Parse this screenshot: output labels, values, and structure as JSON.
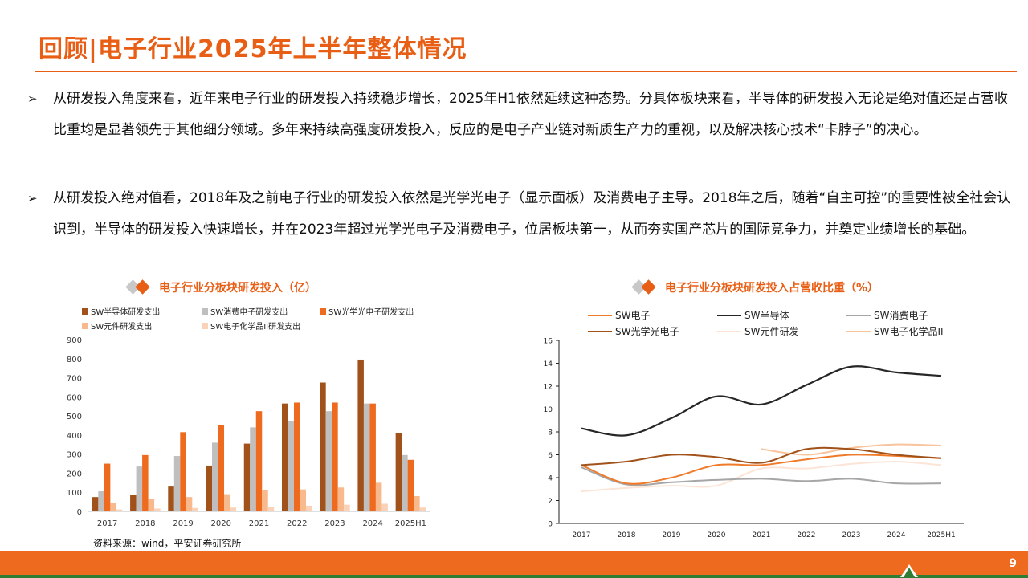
{
  "header": {
    "title": "回顾|电子行业2025年上半年整体情况"
  },
  "bullets": [
    {
      "marker": "➢",
      "text": "从研发投入角度来看，近年来电子行业的研发投入持续稳步增长，2025年H1依然延续这种态势。分具体板块来看，半导体的研发投入无论是绝对值还是占营收比重均是显著领先于其他细分领域。多年来持续高强度研发投入，反应的是电子产业链对新质生产力的重视，以及解决核心技术“卡脖子”的决心。"
    },
    {
      "marker": "➢",
      "text": "从研发投入绝对值看，2018年及之前电子行业的研发投入依然是光学光电子（显示面板）及消费电子主导。2018年之后，随着“自主可控”的重要性被全社会认识到，半导体的研发投入快速增长，并在2023年超过光学光电子及消费电子，位居板块第一，从而夯实国产芯片的国际竞争力，并奠定业绩增长的基础。"
    }
  ],
  "chart_data": [
    {
      "type": "bar",
      "title": "电子行业分板块研发投入（亿）",
      "categories": [
        "2017",
        "2018",
        "2019",
        "2020",
        "2021",
        "2022",
        "2023",
        "2024",
        "2025H1"
      ],
      "ylim": [
        0,
        900
      ],
      "yticks": [
        "0",
        "100",
        "200",
        "300",
        "400",
        "500",
        "600",
        "700",
        "800",
        "900"
      ],
      "series": [
        {
          "name": "SW半导体研发支出",
          "color": "#A0521A",
          "values": [
            75,
            85,
            130,
            240,
            355,
            565,
            675,
            795,
            410
          ]
        },
        {
          "name": "SW消费电子研发支出",
          "color": "#BFBFBF",
          "values": [
            105,
            235,
            290,
            360,
            440,
            475,
            525,
            565,
            295
          ]
        },
        {
          "name": "SW光学光电子研发支出",
          "color": "#EE6A1E",
          "values": [
            250,
            295,
            415,
            450,
            525,
            570,
            570,
            565,
            270
          ]
        },
        {
          "name": "SW元件研发支出",
          "color": "#F8B98C",
          "values": [
            45,
            65,
            75,
            90,
            110,
            115,
            125,
            150,
            80
          ]
        },
        {
          "name": "SW电子化学品II研发支出",
          "color": "#FAD2B8",
          "values": [
            10,
            15,
            18,
            20,
            25,
            30,
            35,
            40,
            20
          ]
        }
      ],
      "legend_position": "top",
      "grid": false
    },
    {
      "type": "line",
      "title": "电子行业分板块研发投入占营收比重（%）",
      "categories": [
        "2017",
        "2018",
        "2019",
        "2020",
        "2021",
        "2022",
        "2023",
        "2024",
        "2025H1"
      ],
      "ylim": [
        0,
        16
      ],
      "yticks": [
        "0",
        "2",
        "4",
        "6",
        "8",
        "10",
        "12",
        "14",
        "16"
      ],
      "series": [
        {
          "name": "SW电子",
          "color": "#EE7A2A",
          "values": [
            5.1,
            3.5,
            4.0,
            5.1,
            5.1,
            5.6,
            6.0,
            5.9,
            5.7
          ]
        },
        {
          "name": "SW半导体",
          "color": "#262626",
          "values": [
            8.3,
            7.7,
            9.2,
            11.1,
            10.4,
            12.1,
            13.7,
            13.2,
            12.9
          ]
        },
        {
          "name": "SW消费电子",
          "color": "#A6A6A6",
          "values": [
            4.9,
            3.4,
            3.6,
            3.8,
            3.9,
            3.7,
            3.9,
            3.5,
            3.5
          ]
        },
        {
          "name": "SW光学光电子",
          "color": "#A0521A",
          "values": [
            5.1,
            5.4,
            6.0,
            5.8,
            5.3,
            6.5,
            6.5,
            6.0,
            5.7
          ]
        },
        {
          "name": "SW元件研发",
          "color": "#FCE5D6",
          "values": [
            2.8,
            3.1,
            3.3,
            3.3,
            4.8,
            4.8,
            5.2,
            5.4,
            5.1
          ]
        },
        {
          "name": "SW电子化学品II",
          "color": "#F8C49E",
          "values": [
            null,
            null,
            null,
            null,
            6.5,
            6.0,
            6.6,
            6.9,
            6.8
          ]
        }
      ],
      "legend_position": "top",
      "grid": false
    }
  ],
  "source": "资料来源：wind，平安证券研究所",
  "page_number": "9"
}
